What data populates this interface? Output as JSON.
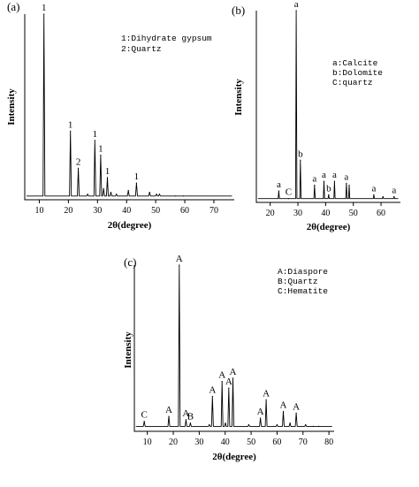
{
  "chart_data": [
    {
      "panel": "(a)",
      "type": "line",
      "title": "",
      "xlabel": "2θ(degree)",
      "ylabel": "Intensity",
      "xlim": [
        5,
        77
      ],
      "ylim": [
        0,
        100
      ],
      "xticks": [
        10,
        20,
        30,
        40,
        50,
        60,
        70
      ],
      "grid": false,
      "legend_position": "top-right",
      "legend": [
        "1:Dihydrate gypsum",
        "2:Quartz"
      ],
      "series": [
        {
          "baseline": 2,
          "peaks": [
            {
              "x": 11.6,
              "y": 100,
              "label": "1"
            },
            {
              "x": 20.7,
              "y": 37,
              "label": "1"
            },
            {
              "x": 23.4,
              "y": 17,
              "label": "2"
            },
            {
              "x": 26.6,
              "y": 3
            },
            {
              "x": 29.1,
              "y": 32,
              "label": "1"
            },
            {
              "x": 31.1,
              "y": 24,
              "label": "1"
            },
            {
              "x": 32.1,
              "y": 6
            },
            {
              "x": 33.4,
              "y": 12,
              "label": "1"
            },
            {
              "x": 34.6,
              "y": 4
            },
            {
              "x": 36.5,
              "y": 3
            },
            {
              "x": 40.6,
              "y": 5
            },
            {
              "x": 43.4,
              "y": 9,
              "label": "1"
            },
            {
              "x": 47.9,
              "y": 4
            },
            {
              "x": 50.3,
              "y": 3
            },
            {
              "x": 51.3,
              "y": 3
            },
            {
              "x": 56.7,
              "y": 2
            },
            {
              "x": 59.5,
              "y": 2
            }
          ]
        }
      ]
    },
    {
      "panel": "(b)",
      "type": "line",
      "title": "",
      "xlabel": "2θ(degree)",
      "ylabel": "Intensity",
      "xlim": [
        15,
        67
      ],
      "ylim": [
        0,
        100
      ],
      "xticks": [
        20,
        30,
        40,
        50,
        60
      ],
      "grid": false,
      "legend_position": "top-right",
      "legend": [
        "a:Calcite",
        "b:Dolomite",
        "C:quartz"
      ],
      "series": [
        {
          "baseline": 2,
          "peaks": [
            {
              "x": 23.1,
              "y": 6,
              "label": "a"
            },
            {
              "x": 26.6,
              "y": 2,
              "label": "C"
            },
            {
              "x": 29.4,
              "y": 100,
              "label": "a"
            },
            {
              "x": 30.9,
              "y": 22,
              "label": "b"
            },
            {
              "x": 36.0,
              "y": 9,
              "label": "a"
            },
            {
              "x": 39.4,
              "y": 11,
              "label": "a"
            },
            {
              "x": 41.1,
              "y": 4,
              "label": "b"
            },
            {
              "x": 43.2,
              "y": 11,
              "label": "a"
            },
            {
              "x": 47.5,
              "y": 10,
              "label": "a"
            },
            {
              "x": 48.5,
              "y": 9
            },
            {
              "x": 57.4,
              "y": 4,
              "label": "a"
            },
            {
              "x": 60.7,
              "y": 3
            },
            {
              "x": 64.7,
              "y": 3,
              "label": "a"
            }
          ]
        }
      ]
    },
    {
      "panel": "(c)",
      "type": "line",
      "title": "",
      "xlabel": "2θ(degree)",
      "ylabel": "Intensity",
      "xlim": [
        5,
        82
      ],
      "ylim": [
        0,
        100
      ],
      "xticks": [
        10,
        20,
        30,
        40,
        50,
        60,
        70,
        80
      ],
      "grid": false,
      "legend_position": "top-right",
      "legend": [
        "A:Diaspore",
        "B:Quartz",
        "C:Hematite"
      ],
      "series": [
        {
          "baseline": 3,
          "peaks": [
            {
              "x": 8.8,
              "y": 6,
              "label": "C"
            },
            {
              "x": 18.3,
              "y": 9,
              "label": "A"
            },
            {
              "x": 22.3,
              "y": 100,
              "label": "A"
            },
            {
              "x": 24.9,
              "y": 7,
              "label": "A"
            },
            {
              "x": 26.6,
              "y": 5,
              "label": "B"
            },
            {
              "x": 33.9,
              "y": 4
            },
            {
              "x": 35.1,
              "y": 21,
              "label": "A"
            },
            {
              "x": 38.8,
              "y": 30,
              "label": "A"
            },
            {
              "x": 40.1,
              "y": 5
            },
            {
              "x": 41.4,
              "y": 26,
              "label": "A"
            },
            {
              "x": 43.0,
              "y": 32,
              "label": "A"
            },
            {
              "x": 49.1,
              "y": 4
            },
            {
              "x": 53.6,
              "y": 8,
              "label": "A"
            },
            {
              "x": 55.8,
              "y": 19,
              "label": "A"
            },
            {
              "x": 60.0,
              "y": 4
            },
            {
              "x": 62.4,
              "y": 12,
              "label": "A"
            },
            {
              "x": 65.0,
              "y": 5
            },
            {
              "x": 67.4,
              "y": 11,
              "label": "A"
            },
            {
              "x": 71.0,
              "y": 4
            },
            {
              "x": 74.0,
              "y": 3
            },
            {
              "x": 76.0,
              "y": 3
            }
          ]
        }
      ]
    }
  ]
}
